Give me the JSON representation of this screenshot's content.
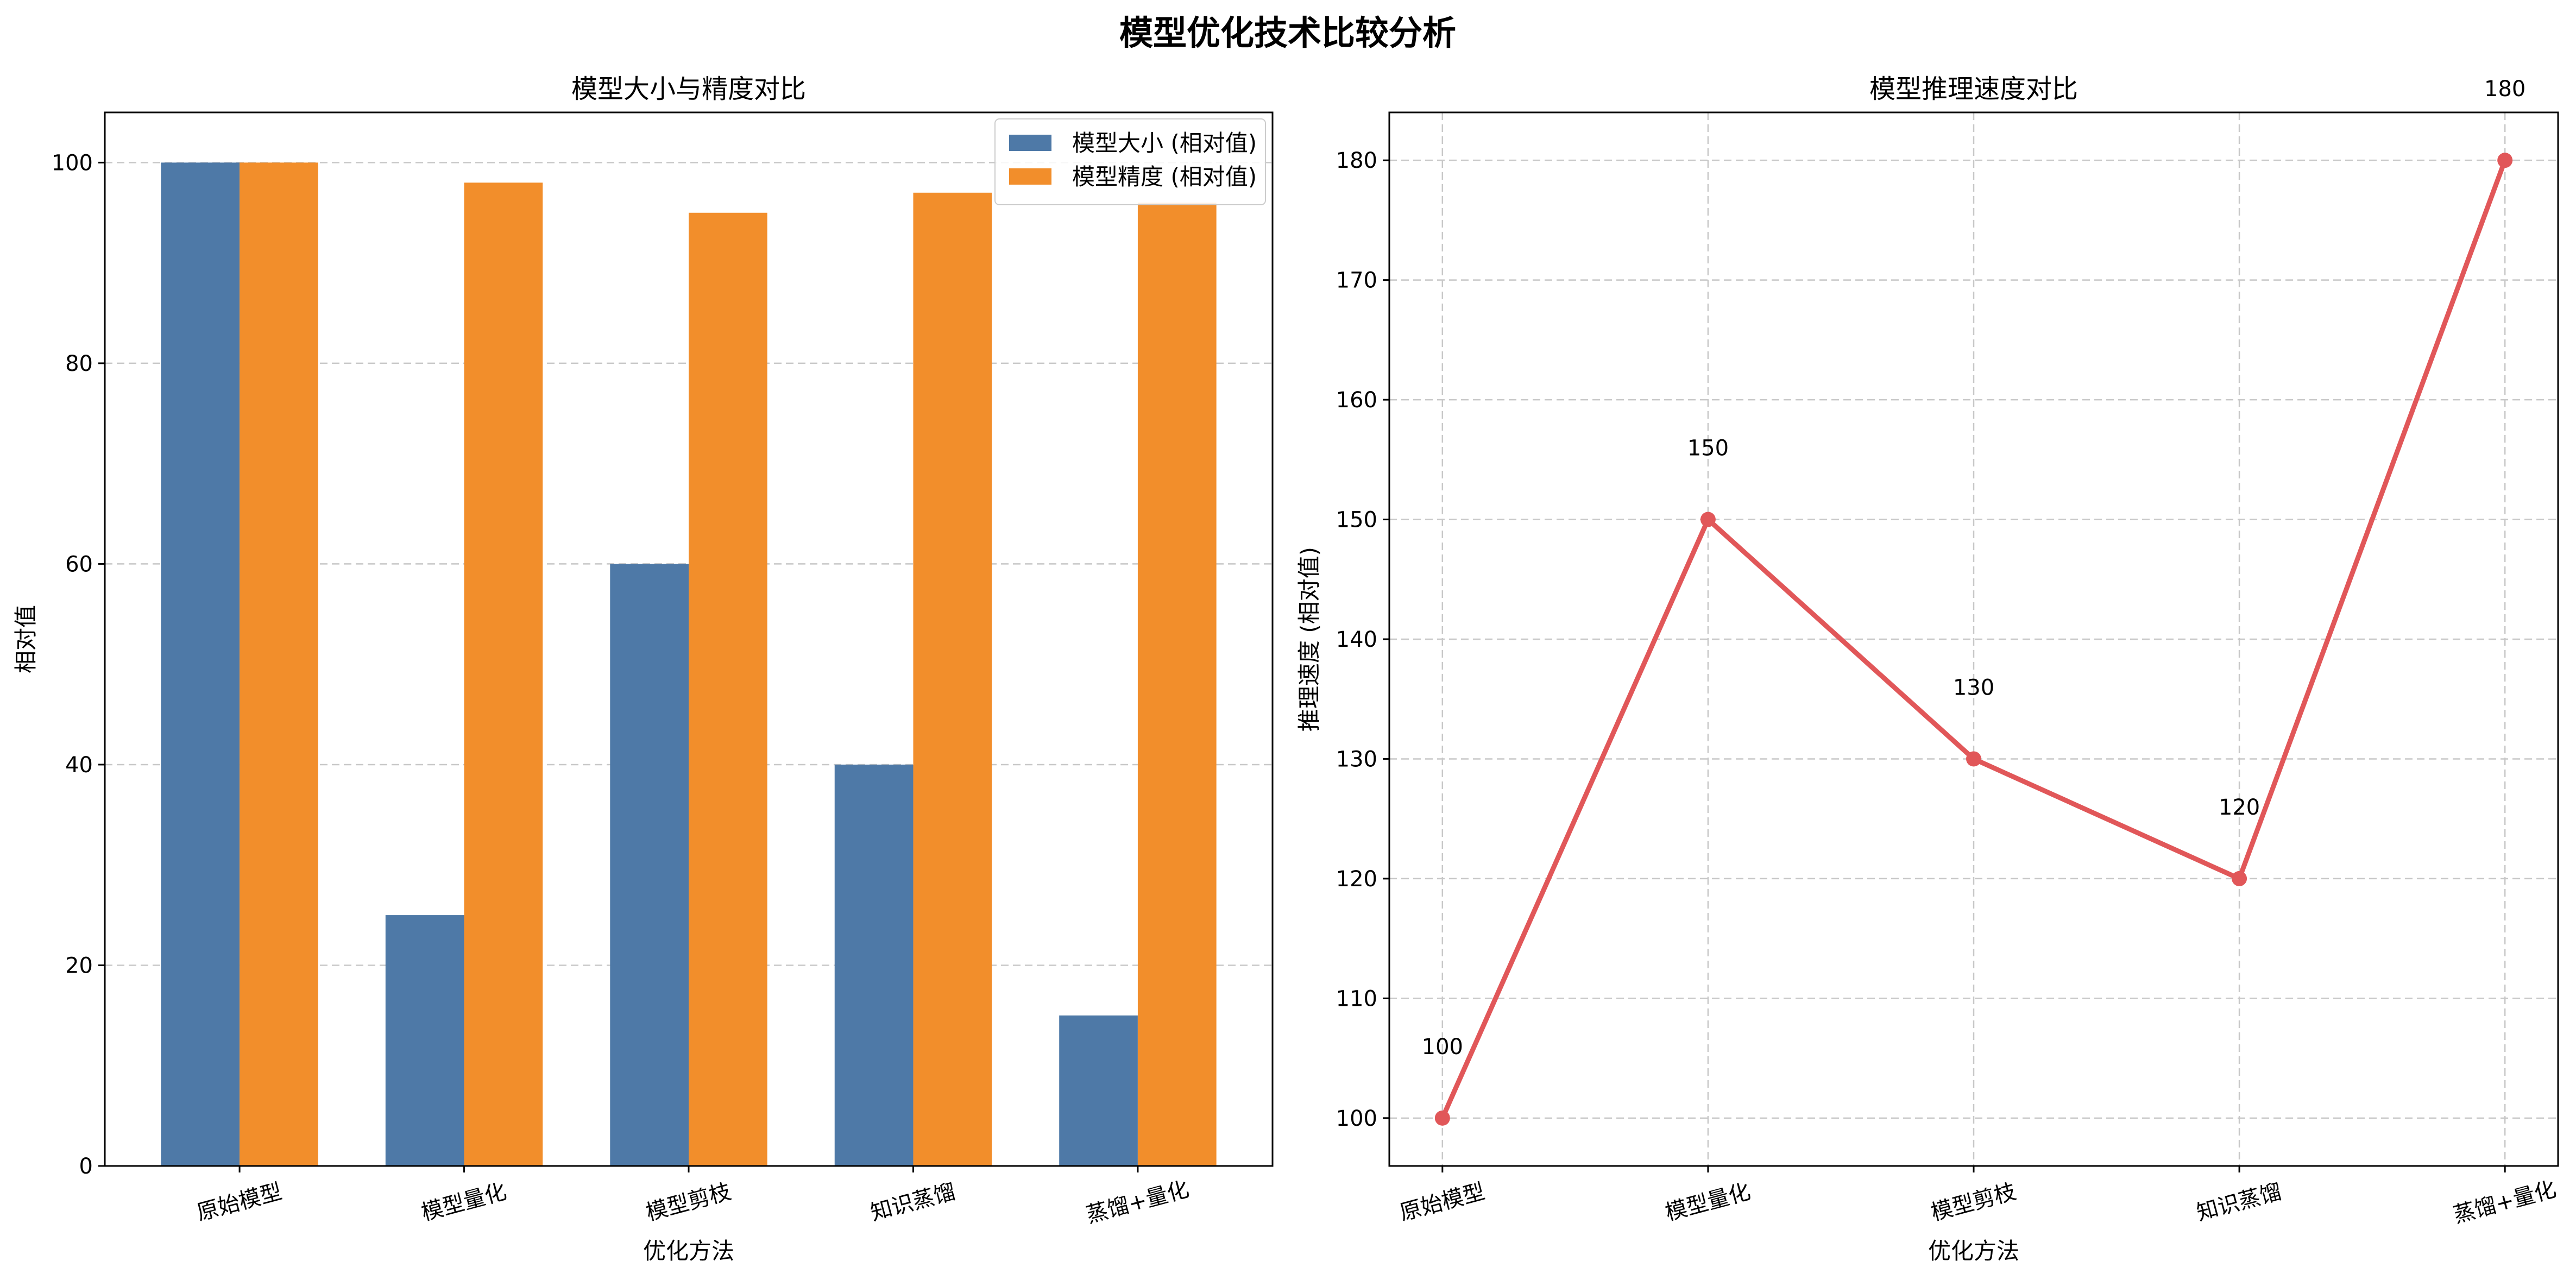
{
  "suptitle": "模型优化技术比较分析",
  "colors": {
    "size_bar": "#4e79a7",
    "accuracy_bar": "#f28e2b",
    "speed_line": "#e15759",
    "grid": "#c8c8c8"
  },
  "chart_data": [
    {
      "type": "bar",
      "title": "模型大小与精度对比",
      "xlabel": "优化方法",
      "ylabel": "相对值",
      "categories": [
        "原始模型",
        "模型量化",
        "模型剪枝",
        "知识蒸馏",
        "蒸馏+量化"
      ],
      "series": [
        {
          "name": "模型大小 (相对值)",
          "values": [
            100,
            25,
            60,
            40,
            15
          ],
          "color": "#4e79a7"
        },
        {
          "name": "模型精度 (相对值)",
          "values": [
            100,
            98,
            95,
            97,
            96
          ],
          "color": "#f28e2b"
        }
      ],
      "ylim": [
        0,
        105
      ],
      "yticks": [
        0,
        20,
        40,
        60,
        80,
        100
      ],
      "grid": "y-dashed",
      "legend": "top-right"
    },
    {
      "type": "line",
      "title": "模型推理速度对比",
      "xlabel": "优化方法",
      "ylabel": "推理速度 (相对值)",
      "categories": [
        "原始模型",
        "模型量化",
        "模型剪枝",
        "知识蒸馏",
        "蒸馏+量化"
      ],
      "values": [
        100,
        150,
        130,
        120,
        180
      ],
      "data_labels": [
        "100",
        "150",
        "130",
        "120",
        "180"
      ],
      "color": "#e15759",
      "ylim": [
        96,
        184
      ],
      "yticks": [
        100,
        110,
        120,
        130,
        140,
        150,
        160,
        170,
        180
      ],
      "grid": "both-dashed",
      "markers": true
    }
  ]
}
